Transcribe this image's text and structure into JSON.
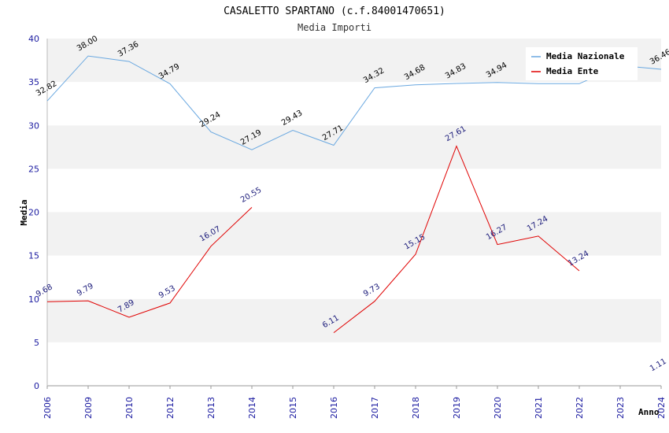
{
  "colors": {
    "nazionale": "#6aa8e0",
    "ente": "#e00000",
    "band": "#f2f2f2",
    "tick": "#1a1aa0"
  },
  "chart_data": {
    "type": "line",
    "title": "CASALETTO SPARTANO (c.f.84001470651)",
    "subtitle": "Media Importi",
    "xlabel": "Anno",
    "ylabel": "Media",
    "ylim": [
      0,
      40
    ],
    "yticks": [
      0,
      5,
      10,
      15,
      20,
      25,
      30,
      35,
      40
    ],
    "categories": [
      "2006",
      "2009",
      "2010",
      "2012",
      "2013",
      "2014",
      "2015",
      "2016",
      "2017",
      "2018",
      "2019",
      "2020",
      "2021",
      "2022",
      "2023",
      "2024"
    ],
    "legend_position": "top-right",
    "series": [
      {
        "name": "Media Nazionale",
        "values": [
          32.82,
          38.0,
          37.36,
          34.79,
          29.24,
          27.19,
          29.43,
          27.71,
          34.32,
          34.68,
          34.83,
          34.94,
          34.8,
          34.8,
          36.9,
          36.46
        ],
        "labels": [
          "32.82",
          "38.00",
          "37.36",
          "34.79",
          "29.24",
          "27.19",
          "29.43",
          "27.71",
          "34.32",
          "34.68",
          "34.83",
          "34.94",
          "",
          "",
          "",
          "36.46"
        ]
      },
      {
        "name": "Media Ente",
        "values": [
          9.68,
          9.79,
          7.89,
          9.53,
          16.07,
          20.55,
          null,
          6.11,
          9.73,
          15.15,
          27.61,
          16.27,
          17.24,
          13.24,
          null,
          1.11
        ],
        "labels": [
          "9.68",
          "9.79",
          "7.89",
          "9.53",
          "16.07",
          "20.55",
          "",
          "6.11",
          "9.73",
          "15.15",
          "27.61",
          "16.27",
          "17.24",
          "13.24",
          "",
          "1.11"
        ]
      }
    ]
  }
}
